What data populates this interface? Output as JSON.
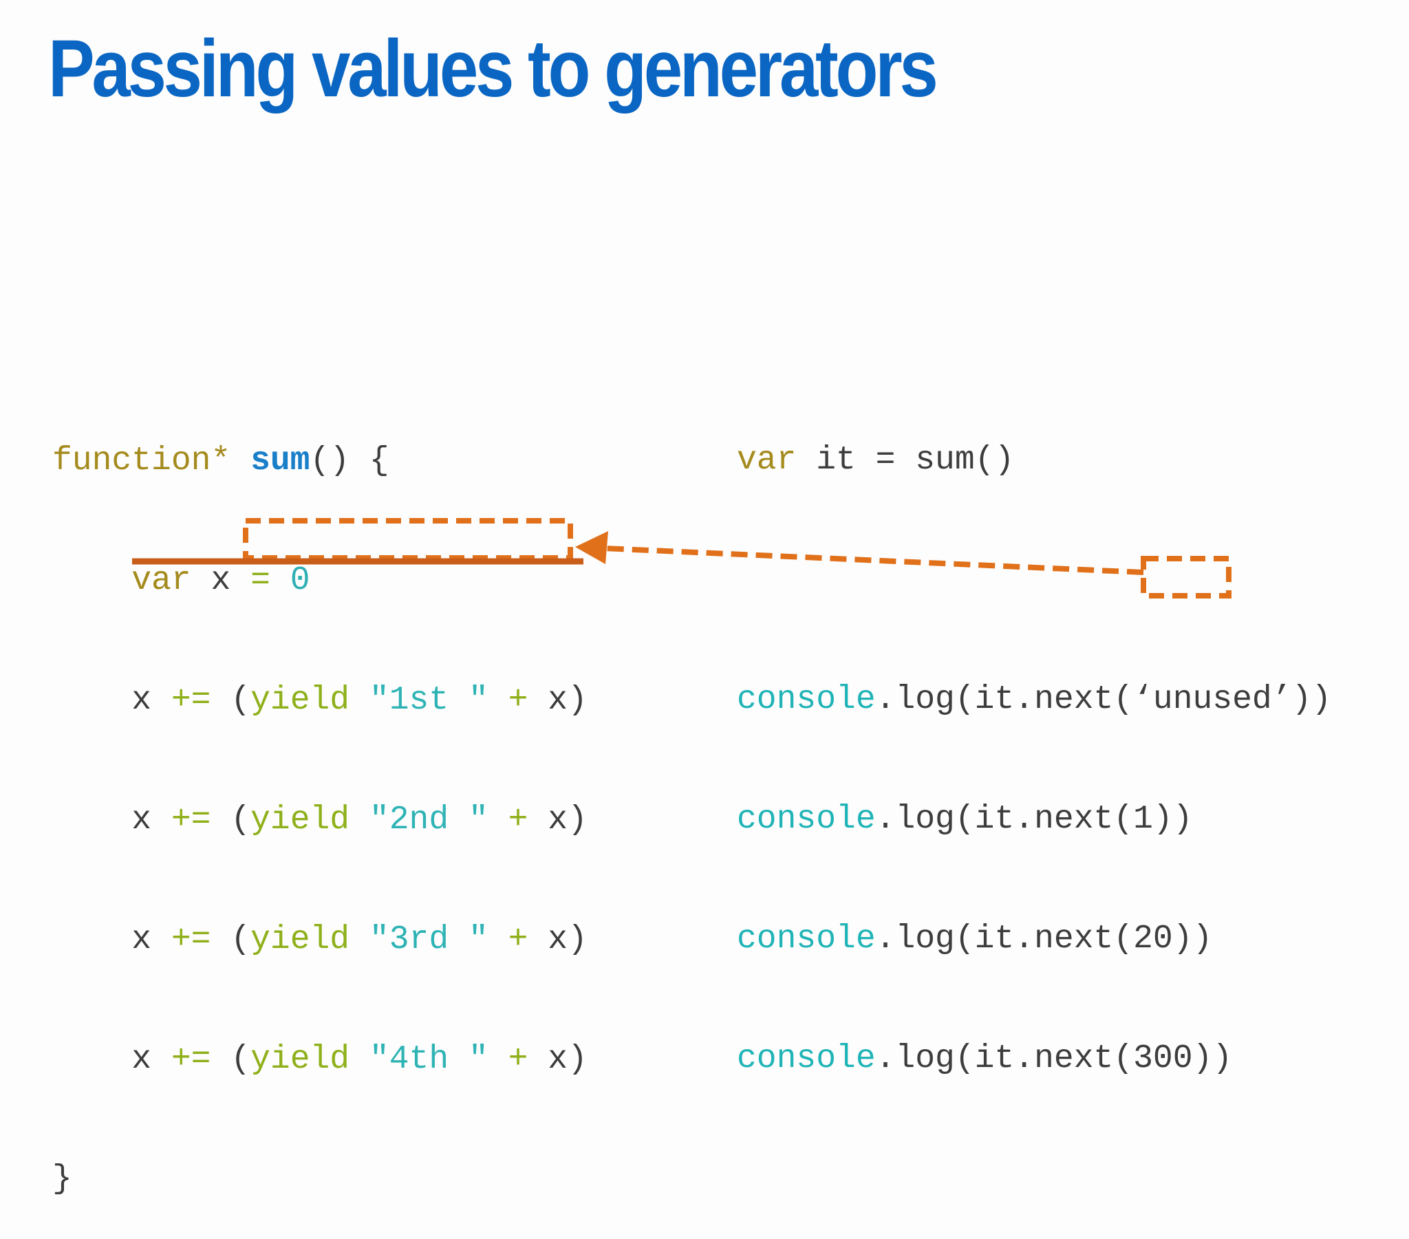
{
  "slide": {
    "title": "Passing values to generators",
    "accent_color": "#0a66c2",
    "annotation_color": "#e0701a"
  },
  "code_left": {
    "line1": {
      "kw": "function*",
      "fn": "sum",
      "rest": "() {"
    },
    "line2": {
      "indent": "    ",
      "kw": "var",
      "mid": " x ",
      "eq": "=",
      "num": "0"
    },
    "line3": {
      "indent": "    ",
      "x": "x",
      "op": "+=",
      "open": "(",
      "yield": "yield",
      "str": "\"1st \"",
      "plus": "+",
      "close": "x)"
    },
    "line4": {
      "indent": "    ",
      "x": "x",
      "op": "+=",
      "open": "(",
      "yield": "yield",
      "str": "\"2nd \"",
      "plus": "+",
      "close": "x)"
    },
    "line5": {
      "indent": "    ",
      "x": "x",
      "op": "+=",
      "open": "(",
      "yield": "yield",
      "str": "\"3rd \"",
      "plus": "+",
      "close": "x)"
    },
    "line6": {
      "indent": "    ",
      "x": "x",
      "op": "+=",
      "open": "(",
      "yield": "yield",
      "str": "\"4th \"",
      "plus": "+",
      "close": "x)"
    },
    "line7": {
      "close": "}"
    }
  },
  "code_right": {
    "line1": {
      "kw": "var",
      "rest": " it = sum()"
    },
    "line3": {
      "obj": "console",
      "rest": ".log(it.next(‘unused’))"
    },
    "line4": {
      "obj": "console",
      "rest": ".log(it.next(1))"
    },
    "line5": {
      "obj": "console",
      "rest": ".log(it.next(20))"
    },
    "line6": {
      "obj": "console",
      "rest": ".log(it.next(300))"
    }
  }
}
